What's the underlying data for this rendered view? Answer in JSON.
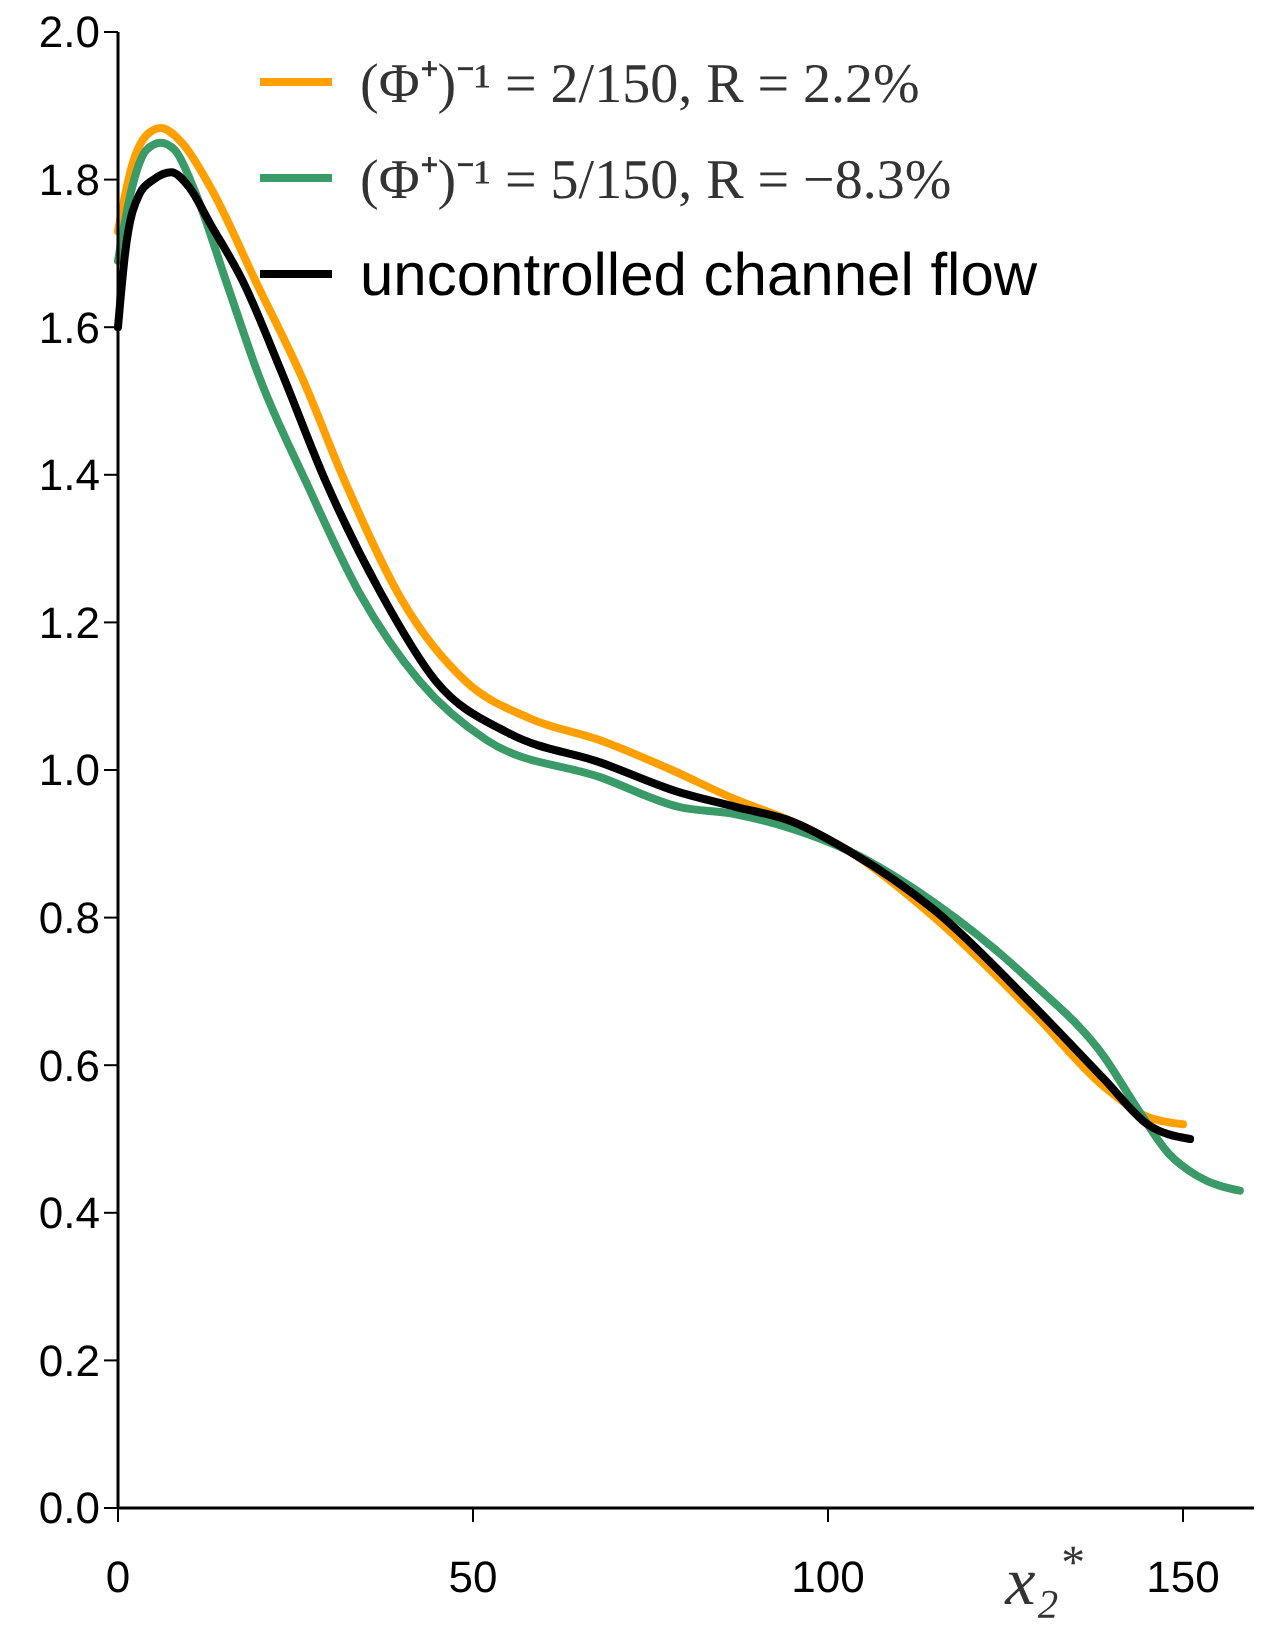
{
  "chart_data": {
    "type": "line",
    "xlabel": "x₂$^{*}$",
    "xlim": [
      0,
      160
    ],
    "xticks": [
      0,
      50,
      100,
      150
    ],
    "ylim": [
      0,
      2.0
    ],
    "yticks": [
      {
        "value": 0,
        "label": "0.0"
      },
      {
        "value": 0.2,
        "label": "0.2"
      },
      {
        "value": 0.4,
        "label": "0.4"
      },
      {
        "value": 0.6,
        "label": "0.6"
      },
      {
        "value": 0.8,
        "label": "0.8"
      },
      {
        "value": 1.0,
        "label": "1.0"
      },
      {
        "value": 1.2,
        "label": "1.2"
      },
      {
        "value": 1.4,
        "label": "1.4"
      },
      {
        "value": 1.6,
        "label": "1.6"
      },
      {
        "value": 1.8,
        "label": "1.8"
      },
      {
        "value": 2.0,
        "label": "2.0"
      }
    ],
    "grid": false,
    "legend": "top right",
    "line_style": "solid",
    "marker": "none",
    "series": [
      {
        "name": "(Φ⁺)⁻¹ = 2/150, R = 2.2%",
        "color": "#ff9f00",
        "x": [
          0,
          2,
          4,
          6,
          9,
          13,
          19.5,
          26,
          32,
          40,
          49,
          58,
          68,
          78,
          87,
          95,
          103,
          115,
          129,
          139,
          145,
          150
        ],
        "values": [
          1.73,
          1.82,
          1.86,
          1.87,
          1.85,
          1.79,
          1.66,
          1.53,
          1.39,
          1.23,
          1.12,
          1.07,
          1.04,
          1.0,
          0.96,
          0.93,
          0.89,
          0.8,
          0.67,
          0.57,
          0.53,
          0.52
        ]
      },
      {
        "name": "(Φ⁺)⁻¹ = 5/150, R = −8.3%",
        "color": "#3a9a68",
        "x": [
          0,
          2,
          4,
          6,
          8,
          11,
          15.3,
          20,
          26.5,
          34,
          42.5,
          52,
          68,
          79,
          87,
          95,
          103,
          115,
          129,
          139,
          143,
          148,
          152,
          158
        ],
        "values": [
          1.69,
          1.79,
          1.84,
          1.85,
          1.84,
          1.78,
          1.66,
          1.53,
          1.39,
          1.24,
          1.12,
          1.04,
          0.99,
          0.95,
          0.94,
          0.92,
          0.89,
          0.82,
          0.71,
          0.61,
          0.55,
          0.48,
          0.45,
          0.43
        ]
      },
      {
        "name": "uncontrolled channel flow",
        "color": "#000000",
        "x": [
          0,
          1,
          3,
          5,
          7.5,
          10,
          13,
          17.7,
          23,
          29.3,
          37,
          44.8,
          55,
          68,
          79,
          87,
          95,
          103,
          115,
          129,
          139,
          145,
          151
        ],
        "values": [
          1.6,
          1.7,
          1.78,
          1.8,
          1.81,
          1.79,
          1.74,
          1.66,
          1.54,
          1.39,
          1.24,
          1.12,
          1.05,
          1.01,
          0.97,
          0.95,
          0.93,
          0.89,
          0.81,
          0.68,
          0.58,
          0.52,
          0.5
        ]
      }
    ]
  }
}
